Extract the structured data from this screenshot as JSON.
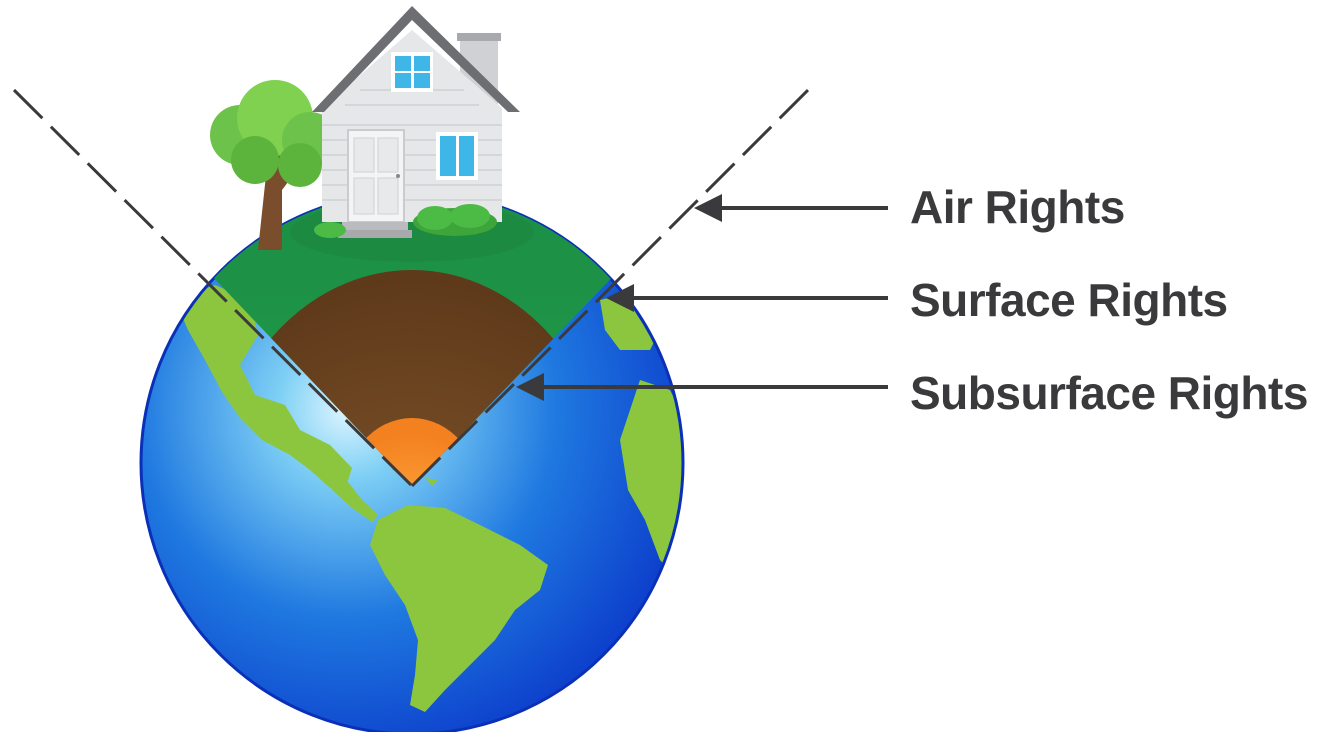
{
  "labels": {
    "air": "Air Rights",
    "surface": "Surface Rights",
    "subsurface": "Subsurface Rights"
  },
  "colors": {
    "label_text": "#3a3a3c",
    "arrow": "#3a3a3c",
    "ocean": "#1e63d8",
    "land": "#8cc63f",
    "grass": "#1f9a4a",
    "soil": "#6b4226",
    "core": "#f7941d",
    "house_wall": "#e6e7e8",
    "roof": "#6d6e71",
    "window": "#3fb6e8",
    "tree_leaves": "#6cc24a",
    "tree_trunk": "#7a4e2d"
  },
  "icons": [
    "house-icon",
    "tree-icon",
    "globe-icon",
    "arrow-icon"
  ]
}
